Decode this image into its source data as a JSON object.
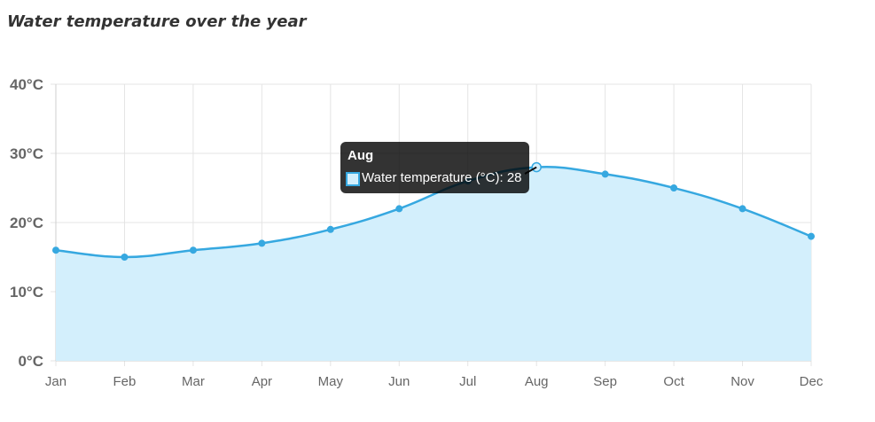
{
  "chart_data": {
    "type": "line",
    "title": "Water temperature over the year",
    "categories": [
      "Jan",
      "Feb",
      "Mar",
      "Apr",
      "May",
      "Jun",
      "Jul",
      "Aug",
      "Sep",
      "Oct",
      "Nov",
      "Dec"
    ],
    "series": [
      {
        "name": "Water temperature (°C)",
        "values": [
          16,
          15,
          16,
          17,
          19,
          22,
          26,
          28,
          27,
          25,
          22,
          18
        ],
        "fill": "area",
        "line_color": "#36a8e0",
        "fill_color": "#d3effc"
      }
    ],
    "ylim": [
      0,
      40
    ],
    "yticks": [
      0,
      10,
      20,
      30,
      40
    ],
    "ytick_labels": [
      "0°C",
      "10°C",
      "20°C",
      "30°C",
      "40°C"
    ],
    "xlabel": "",
    "ylabel": "",
    "grid": true,
    "tooltip": {
      "title": "Aug",
      "text": "Water temperature (°C): 28",
      "active_index": 7
    }
  }
}
